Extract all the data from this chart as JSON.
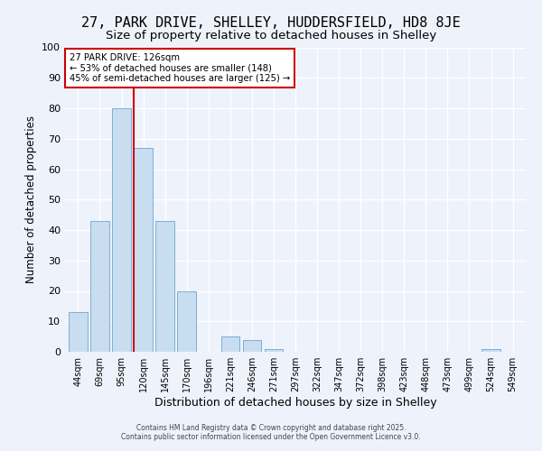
{
  "title_line1": "27, PARK DRIVE, SHELLEY, HUDDERSFIELD, HD8 8JE",
  "title_line2": "Size of property relative to detached houses in Shelley",
  "xlabel": "Distribution of detached houses by size in Shelley",
  "ylabel": "Number of detached properties",
  "bar_labels": [
    "44sqm",
    "69sqm",
    "95sqm",
    "120sqm",
    "145sqm",
    "170sqm",
    "196sqm",
    "221sqm",
    "246sqm",
    "271sqm",
    "297sqm",
    "322sqm",
    "347sqm",
    "372sqm",
    "398sqm",
    "423sqm",
    "448sqm",
    "473sqm",
    "499sqm",
    "524sqm",
    "549sqm"
  ],
  "bar_values": [
    13,
    43,
    80,
    67,
    43,
    20,
    0,
    5,
    4,
    1,
    0,
    0,
    0,
    0,
    0,
    0,
    0,
    0,
    0,
    1,
    0
  ],
  "bar_color": "#c8ddf0",
  "bar_edge_color": "#7ab0d4",
  "vline_color": "#cc0000",
  "annotation_title": "27 PARK DRIVE: 126sqm",
  "annotation_line1": "← 53% of detached houses are smaller (148)",
  "annotation_line2": "45% of semi-detached houses are larger (125) →",
  "annotation_box_color": "#ffffff",
  "annotation_box_edge": "#cc0000",
  "ylim": [
    0,
    100
  ],
  "yticks": [
    0,
    10,
    20,
    30,
    40,
    50,
    60,
    70,
    80,
    90,
    100
  ],
  "footer_line1": "Contains HM Land Registry data © Crown copyright and database right 2025.",
  "footer_line2": "Contains public sector information licensed under the Open Government Licence v3.0.",
  "bg_color": "#eef2fb",
  "grid_color": "#ffffff",
  "title_fontsize": 11,
  "subtitle_fontsize": 9.5
}
